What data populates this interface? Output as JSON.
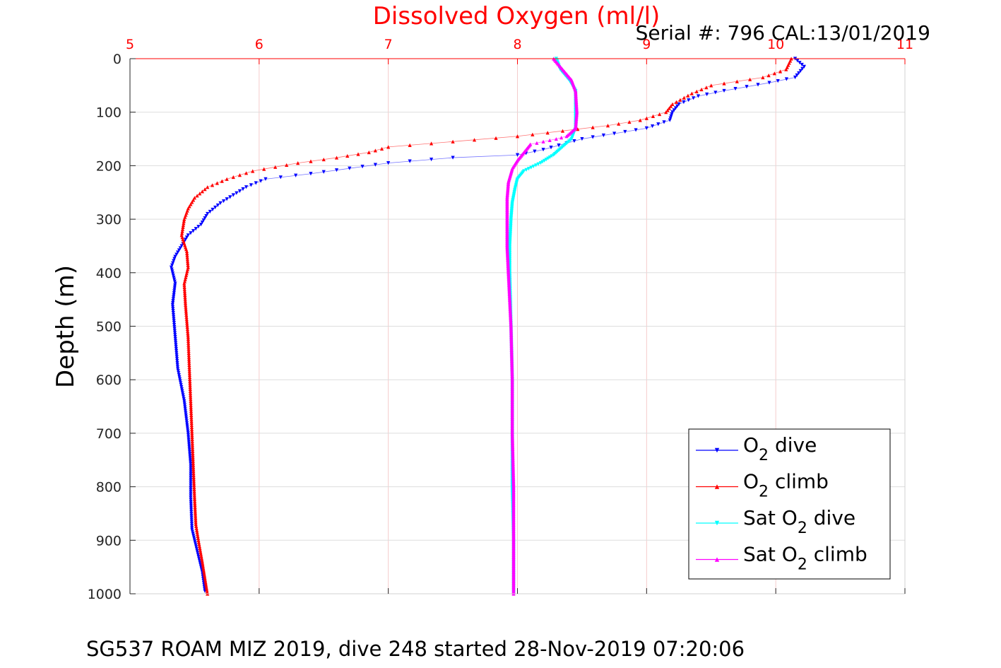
{
  "chart_data": {
    "type": "scatter",
    "title": "Dissolved Oxygen (ml/l)",
    "subtitle": "Serial #: 796  CAL:13/01/2019",
    "caption": "SG537 ROAM MIZ 2019, dive 248 started 28-Nov-2019 07:20:06",
    "xlabel": "",
    "ylabel": "Depth (m)",
    "xlim": [
      5,
      11
    ],
    "ylim": [
      0,
      1000
    ],
    "y_reversed": true,
    "x_axis_position": "top",
    "x_ticks": [
      "5",
      "6",
      "7",
      "8",
      "9",
      "10",
      "11"
    ],
    "y_ticks": [
      "0",
      "100",
      "200",
      "300",
      "400",
      "500",
      "600",
      "700",
      "800",
      "900",
      "1000"
    ],
    "grid": true,
    "legend_position": "bottom-right",
    "colors": {
      "title": "#ff0000",
      "x_axis": "#ff0000",
      "grid": "#dddddd"
    },
    "series": [
      {
        "name": "O2 dive",
        "legend_main": "O",
        "legend_sub": "2",
        "legend_suffix": " dive",
        "color": "#0000ff",
        "marker": "triangle-down",
        "points": [
          [
            10.15,
            0
          ],
          [
            10.22,
            15
          ],
          [
            10.15,
            35
          ],
          [
            9.95,
            45
          ],
          [
            9.6,
            60
          ],
          [
            9.4,
            70
          ],
          [
            9.25,
            85
          ],
          [
            9.2,
            100
          ],
          [
            9.18,
            115
          ],
          [
            9.0,
            130
          ],
          [
            8.75,
            140
          ],
          [
            8.5,
            150
          ],
          [
            8.2,
            170
          ],
          [
            8.0,
            180
          ],
          [
            7.5,
            185
          ],
          [
            7.0,
            195
          ],
          [
            6.7,
            205
          ],
          [
            6.4,
            215
          ],
          [
            6.05,
            225
          ],
          [
            5.9,
            240
          ],
          [
            5.8,
            255
          ],
          [
            5.7,
            270
          ],
          [
            5.6,
            290
          ],
          [
            5.55,
            310
          ],
          [
            5.45,
            330
          ],
          [
            5.4,
            350
          ],
          [
            5.35,
            370
          ],
          [
            5.32,
            390
          ],
          [
            5.35,
            420
          ],
          [
            5.33,
            460
          ],
          [
            5.35,
            520
          ],
          [
            5.37,
            580
          ],
          [
            5.42,
            640
          ],
          [
            5.45,
            700
          ],
          [
            5.47,
            760
          ],
          [
            5.47,
            820
          ],
          [
            5.48,
            880
          ],
          [
            5.52,
            920
          ],
          [
            5.56,
            960
          ],
          [
            5.58,
            995
          ]
        ]
      },
      {
        "name": "O2 climb",
        "legend_main": "O",
        "legend_sub": "2",
        "legend_suffix": " climb",
        "color": "#ff0000",
        "marker": "triangle-up",
        "points": [
          [
            10.12,
            0
          ],
          [
            10.08,
            20
          ],
          [
            9.9,
            35
          ],
          [
            9.5,
            50
          ],
          [
            9.35,
            65
          ],
          [
            9.2,
            85
          ],
          [
            9.15,
            100
          ],
          [
            8.95,
            115
          ],
          [
            8.7,
            125
          ],
          [
            8.35,
            135
          ],
          [
            8.0,
            145
          ],
          [
            7.5,
            155
          ],
          [
            7.0,
            165
          ],
          [
            6.85,
            175
          ],
          [
            6.6,
            185
          ],
          [
            6.3,
            195
          ],
          [
            5.95,
            210
          ],
          [
            5.75,
            225
          ],
          [
            5.6,
            240
          ],
          [
            5.5,
            260
          ],
          [
            5.45,
            280
          ],
          [
            5.42,
            300
          ],
          [
            5.4,
            330
          ],
          [
            5.44,
            360
          ],
          [
            5.45,
            390
          ],
          [
            5.42,
            420
          ],
          [
            5.43,
            460
          ],
          [
            5.45,
            520
          ],
          [
            5.46,
            580
          ],
          [
            5.47,
            640
          ],
          [
            5.48,
            700
          ],
          [
            5.49,
            760
          ],
          [
            5.5,
            820
          ],
          [
            5.51,
            870
          ],
          [
            5.53,
            900
          ],
          [
            5.56,
            940
          ],
          [
            5.58,
            970
          ],
          [
            5.6,
            1000
          ]
        ]
      },
      {
        "name": "Sat O2 dive",
        "legend_main": "Sat O",
        "legend_sub": "2",
        "legend_suffix": " dive",
        "color": "#00ffff",
        "marker": "triangle-down",
        "points": [
          [
            8.3,
            0
          ],
          [
            8.33,
            20
          ],
          [
            8.4,
            40
          ],
          [
            8.45,
            60
          ],
          [
            8.45,
            100
          ],
          [
            8.45,
            130
          ],
          [
            8.42,
            150
          ],
          [
            8.35,
            165
          ],
          [
            8.28,
            180
          ],
          [
            8.18,
            195
          ],
          [
            8.05,
            210
          ],
          [
            8.0,
            225
          ],
          [
            7.98,
            245
          ],
          [
            7.96,
            270
          ],
          [
            7.95,
            300
          ],
          [
            7.94,
            350
          ],
          [
            7.94,
            400
          ],
          [
            7.95,
            500
          ],
          [
            7.96,
            600
          ],
          [
            7.96,
            700
          ],
          [
            7.96,
            800
          ],
          [
            7.97,
            900
          ],
          [
            7.97,
            1000
          ]
        ]
      },
      {
        "name": "Sat O2 climb",
        "legend_main": "Sat O",
        "legend_sub": "2",
        "legend_suffix": " climb",
        "color": "#ff00ff",
        "marker": "triangle-up",
        "points": [
          [
            8.28,
            0
          ],
          [
            8.35,
            20
          ],
          [
            8.42,
            40
          ],
          [
            8.45,
            60
          ],
          [
            8.46,
            100
          ],
          [
            8.45,
            130
          ],
          [
            8.38,
            145
          ],
          [
            8.3,
            150
          ],
          [
            8.2,
            155
          ],
          [
            8.1,
            160
          ],
          [
            8.05,
            175
          ],
          [
            8.0,
            190
          ],
          [
            7.96,
            205
          ],
          [
            7.93,
            230
          ],
          [
            7.92,
            260
          ],
          [
            7.92,
            300
          ],
          [
            7.92,
            350
          ],
          [
            7.93,
            400
          ],
          [
            7.95,
            500
          ],
          [
            7.96,
            600
          ],
          [
            7.96,
            700
          ],
          [
            7.97,
            800
          ],
          [
            7.97,
            900
          ],
          [
            7.97,
            1000
          ]
        ]
      }
    ]
  }
}
